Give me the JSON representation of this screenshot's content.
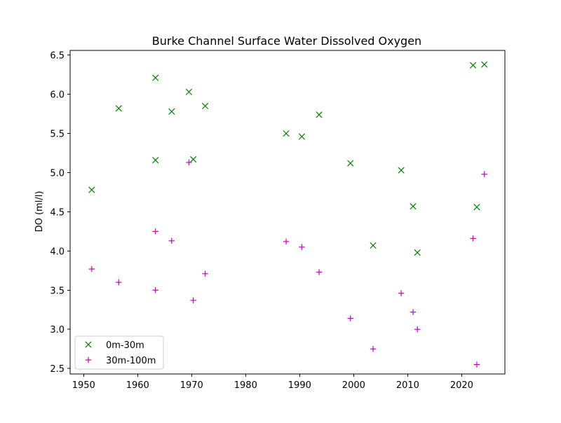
{
  "chart_data": {
    "type": "scatter",
    "title": "Burke Channel Surface Water Dissolved Oxygen",
    "xlabel": "",
    "ylabel": "DO (ml/l)",
    "xlim": [
      1947.5,
      2028.0
    ],
    "ylim": [
      2.43,
      6.56
    ],
    "x_ticks": [
      1950,
      1960,
      1970,
      1980,
      1990,
      2000,
      2010,
      2020
    ],
    "y_ticks": [
      2.5,
      3.0,
      3.5,
      4.0,
      4.5,
      5.0,
      5.5,
      6.0,
      6.5
    ],
    "x_tick_labels": [
      "1950",
      "1960",
      "1970",
      "1980",
      "1990",
      "2000",
      "2010",
      "2020"
    ],
    "y_tick_labels": [
      "2.5",
      "3.0",
      "3.5",
      "4.0",
      "4.5",
      "5.0",
      "5.5",
      "6.0",
      "6.5"
    ],
    "grid": false,
    "legend_position": "lower-left",
    "series": [
      {
        "name": "0m-30m",
        "marker": "x",
        "color": "#008000",
        "points": [
          {
            "x": 1951.5,
            "y": 4.78
          },
          {
            "x": 1956.5,
            "y": 5.82
          },
          {
            "x": 1963.3,
            "y": 6.21
          },
          {
            "x": 1963.3,
            "y": 5.16
          },
          {
            "x": 1966.3,
            "y": 5.78
          },
          {
            "x": 1969.5,
            "y": 6.03
          },
          {
            "x": 1970.3,
            "y": 5.17
          },
          {
            "x": 1972.5,
            "y": 5.85
          },
          {
            "x": 1987.5,
            "y": 5.5
          },
          {
            "x": 1990.4,
            "y": 5.46
          },
          {
            "x": 1993.6,
            "y": 5.74
          },
          {
            "x": 1999.4,
            "y": 5.12
          },
          {
            "x": 2003.6,
            "y": 4.07
          },
          {
            "x": 2008.8,
            "y": 5.03
          },
          {
            "x": 2011.0,
            "y": 4.57
          },
          {
            "x": 2011.8,
            "y": 3.98
          },
          {
            "x": 2022.1,
            "y": 6.37
          },
          {
            "x": 2022.8,
            "y": 4.56
          },
          {
            "x": 2024.2,
            "y": 6.38
          }
        ]
      },
      {
        "name": "30m-100m",
        "marker": "+",
        "color": "#bf00bf",
        "points": [
          {
            "x": 1951.5,
            "y": 3.77
          },
          {
            "x": 1956.5,
            "y": 3.6
          },
          {
            "x": 1963.3,
            "y": 4.25
          },
          {
            "x": 1963.3,
            "y": 3.5
          },
          {
            "x": 1966.3,
            "y": 4.13
          },
          {
            "x": 1969.5,
            "y": 5.13
          },
          {
            "x": 1970.3,
            "y": 3.37
          },
          {
            "x": 1972.5,
            "y": 3.71
          },
          {
            "x": 1987.5,
            "y": 4.12
          },
          {
            "x": 1990.4,
            "y": 4.05
          },
          {
            "x": 1993.6,
            "y": 3.73
          },
          {
            "x": 1999.4,
            "y": 3.14
          },
          {
            "x": 2003.6,
            "y": 2.75
          },
          {
            "x": 2008.8,
            "y": 3.46
          },
          {
            "x": 2011.0,
            "y": 3.22
          },
          {
            "x": 2011.8,
            "y": 3.0
          },
          {
            "x": 2022.1,
            "y": 4.16
          },
          {
            "x": 2022.8,
            "y": 2.55
          },
          {
            "x": 2024.2,
            "y": 4.98
          }
        ]
      }
    ]
  }
}
